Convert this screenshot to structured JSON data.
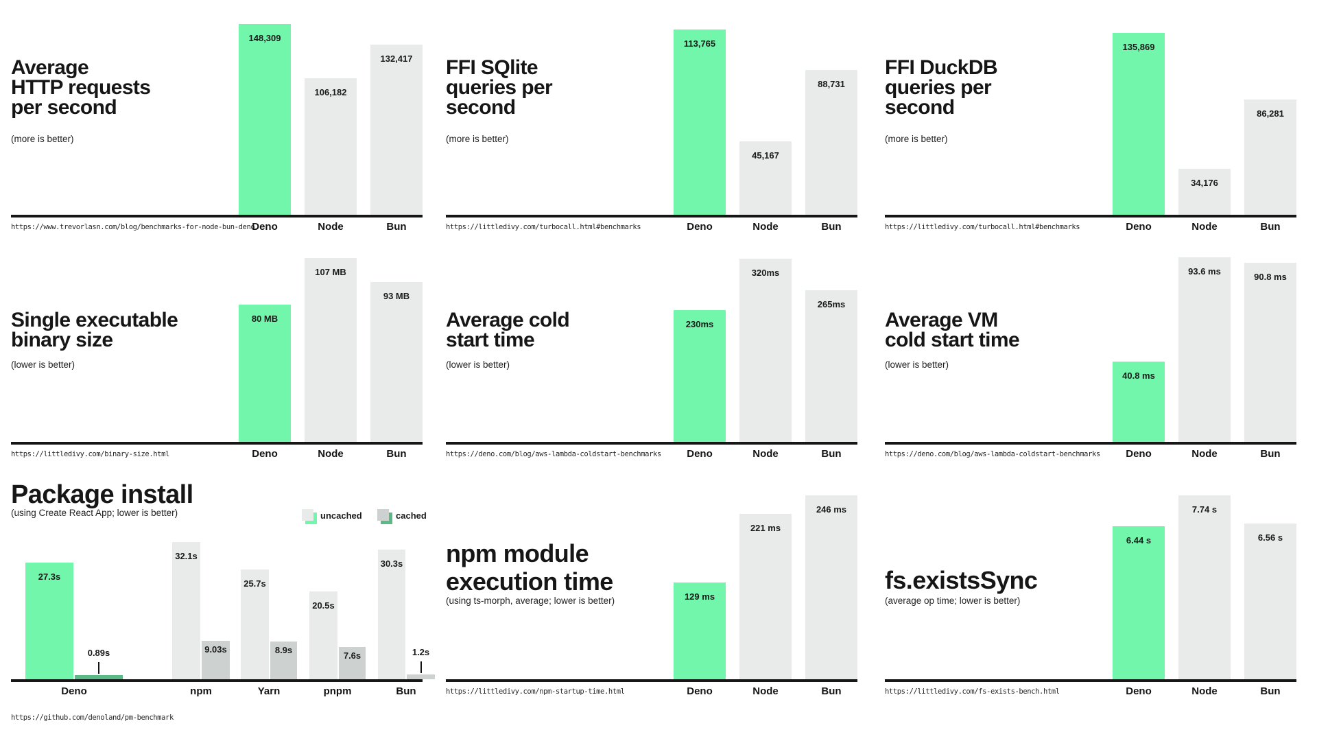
{
  "colors": {
    "deno_green": "#71f6ab",
    "deno_green_dark": "#5ab987",
    "bar_gray": "#e8ebe9",
    "bar_gray_dark": "#cdd2d0",
    "text": "#161616",
    "axis": "#161616"
  },
  "chart_data": [
    {
      "type": "bar",
      "title": "Average HTTP requests per second",
      "title_lines": [
        "Average",
        "HTTP requests",
        "per second"
      ],
      "subtitle": "(more is better)",
      "source_url": "https://www.trevorlasn.com/blog/benchmarks-for-node-bun-deno",
      "categories": [
        "Deno",
        "Node",
        "Bun"
      ],
      "values": [
        148309,
        106182,
        132417
      ],
      "value_labels": [
        "148,309",
        "106,182",
        "132,417"
      ],
      "highlight": "Deno",
      "ylim": [
        0,
        148309
      ],
      "grid": false
    },
    {
      "type": "bar",
      "title": "FFI SQlite queries per second",
      "title_lines": [
        "FFI SQlite",
        "queries per",
        "second"
      ],
      "subtitle": "(more is better)",
      "source_url": "https://littledivy.com/turbocall.html#benchmarks",
      "categories": [
        "Deno",
        "Node",
        "Bun"
      ],
      "values": [
        113765,
        45167,
        88731
      ],
      "value_labels": [
        "113,765",
        "45,167",
        "88,731"
      ],
      "highlight": "Deno",
      "ylim": [
        0,
        113765
      ],
      "grid": false
    },
    {
      "type": "bar",
      "title": "FFI DuckDB queries per second",
      "title_lines": [
        "FFI DuckDB",
        "queries per",
        "second"
      ],
      "subtitle": "(more is better)",
      "source_url": "https://littledivy.com/turbocall.html#benchmarks",
      "categories": [
        "Deno",
        "Node",
        "Bun"
      ],
      "values": [
        135869,
        34176,
        86281
      ],
      "value_labels": [
        "135,869",
        "34,176",
        "86,281"
      ],
      "highlight": "Deno",
      "ylim": [
        0,
        135869
      ],
      "grid": false
    },
    {
      "type": "bar",
      "title": "Single executable binary size",
      "title_lines": [
        "Single executable",
        "binary size"
      ],
      "subtitle": "(lower is better)",
      "source_url": "https://littledivy.com/binary-size.html",
      "categories": [
        "Deno",
        "Node",
        "Bun"
      ],
      "values": [
        80,
        107,
        93
      ],
      "value_labels": [
        "80 MB",
        "107 MB",
        "93 MB"
      ],
      "unit": "MB",
      "highlight": "Deno",
      "ylim": [
        0,
        107
      ],
      "grid": false
    },
    {
      "type": "bar",
      "title": "Average cold start time",
      "title_lines": [
        "Average cold",
        "start time"
      ],
      "subtitle": "(lower is better)",
      "source_url": "https://deno.com/blog/aws-lambda-coldstart-benchmarks",
      "categories": [
        "Deno",
        "Node",
        "Bun"
      ],
      "values": [
        230,
        320,
        265
      ],
      "value_labels": [
        "230ms",
        "320ms",
        "265ms"
      ],
      "unit": "ms",
      "highlight": "Deno",
      "ylim": [
        0,
        320
      ],
      "grid": false
    },
    {
      "type": "bar",
      "title": "Average VM cold start time",
      "title_lines": [
        "Average VM",
        "cold start time"
      ],
      "subtitle": "(lower is better)",
      "source_url": "https://deno.com/blog/aws-lambda-coldstart-benchmarks",
      "categories": [
        "Deno",
        "Node",
        "Bun"
      ],
      "values": [
        40.8,
        93.6,
        90.8
      ],
      "value_labels": [
        "40.8 ms",
        "93.6 ms",
        "90.8 ms"
      ],
      "unit": "ms",
      "highlight": "Deno",
      "ylim": [
        0,
        93.6
      ],
      "grid": false
    },
    {
      "type": "grouped-bar",
      "title": "Package install",
      "title_lines": [
        "Package install"
      ],
      "subtitle": "(using Create React App; lower is better)",
      "source_url": "https://github.com/denoland/pm-benchmark",
      "categories": [
        "Deno",
        "npm",
        "Yarn",
        "pnpm",
        "Bun"
      ],
      "legend": [
        "uncached",
        "cached"
      ],
      "legend_position": "top-right",
      "series": [
        {
          "name": "uncached",
          "values": [
            27.3,
            32.1,
            25.7,
            20.5,
            30.3
          ],
          "value_labels": [
            "27.3s",
            "32.1s",
            "25.7s",
            "20.5s",
            "30.3s"
          ]
        },
        {
          "name": "cached",
          "values": [
            0.89,
            9.03,
            8.9,
            7.6,
            1.2
          ],
          "value_labels": [
            "0.89s",
            "9.03s",
            "8.9s",
            "7.6s",
            "1.2s"
          ]
        }
      ],
      "unit": "s",
      "highlight": "Deno",
      "ylim": [
        0,
        32.1
      ],
      "grid": false
    },
    {
      "type": "bar",
      "title": "npm module execution time",
      "title_lines": [
        "npm module",
        "execution time"
      ],
      "subtitle": "(using ts-morph, average; lower is better)",
      "source_url": "https://littledivy.com/npm-startup-time.html",
      "categories": [
        "Deno",
        "Node",
        "Bun"
      ],
      "values": [
        129,
        221,
        246
      ],
      "value_labels": [
        "129 ms",
        "221 ms",
        "246 ms"
      ],
      "unit": "ms",
      "highlight": "Deno",
      "ylim": [
        0,
        246
      ],
      "grid": false
    },
    {
      "type": "bar",
      "title": "fs.existsSync",
      "title_lines": [
        "fs.existsSync"
      ],
      "subtitle": "(average op time; lower is better)",
      "source_url": "https://littledivy.com/fs-exists-bench.html",
      "categories": [
        "Deno",
        "Node",
        "Bun"
      ],
      "values": [
        6.44,
        7.74,
        6.56
      ],
      "value_labels": [
        "6.44 s",
        "7.74 s",
        "6.56 s"
      ],
      "unit": "s",
      "highlight": "Deno",
      "ylim": [
        0,
        7.74
      ],
      "grid": false
    }
  ]
}
